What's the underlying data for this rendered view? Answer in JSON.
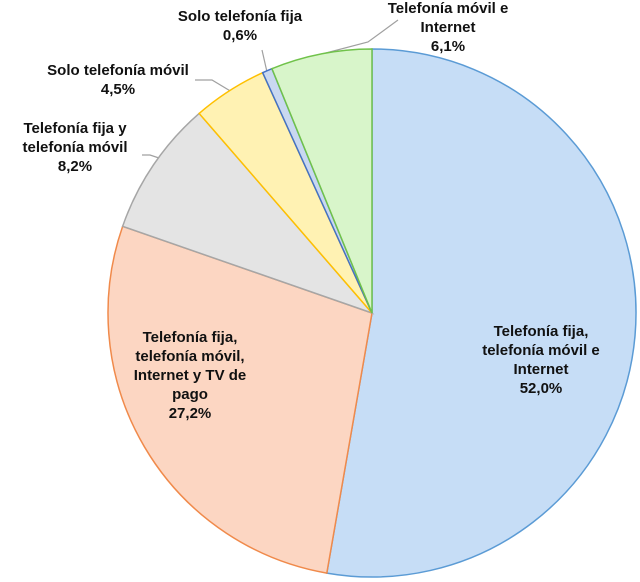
{
  "chart_data": {
    "type": "pie",
    "categories": [
      "Telefonía fija, telefonía móvil e Internet",
      "Telefonía fija, telefonía móvil, Internet y TV de pago",
      "Telefonía fija y telefonía móvil",
      "Solo telefonía móvil",
      "Solo telefonía fija",
      "Telefonía móvil e Internet"
    ],
    "values": [
      52.0,
      27.2,
      8.2,
      4.5,
      0.6,
      6.1
    ],
    "value_labels": [
      "52,0%",
      "27,2%",
      "8,2%",
      "4,5%",
      "0,6%",
      "6,1%"
    ],
    "colors": [
      "#c6ddf6",
      "#fcd6c2",
      "#e4e4e4",
      "#fff2b3",
      "#c9d8f0",
      "#d8f5ca"
    ],
    "edge_colors": [
      "#5b9bd5",
      "#f08a4b",
      "#a6a6a6",
      "#ffc000",
      "#4472c4",
      "#70c24a"
    ]
  }
}
